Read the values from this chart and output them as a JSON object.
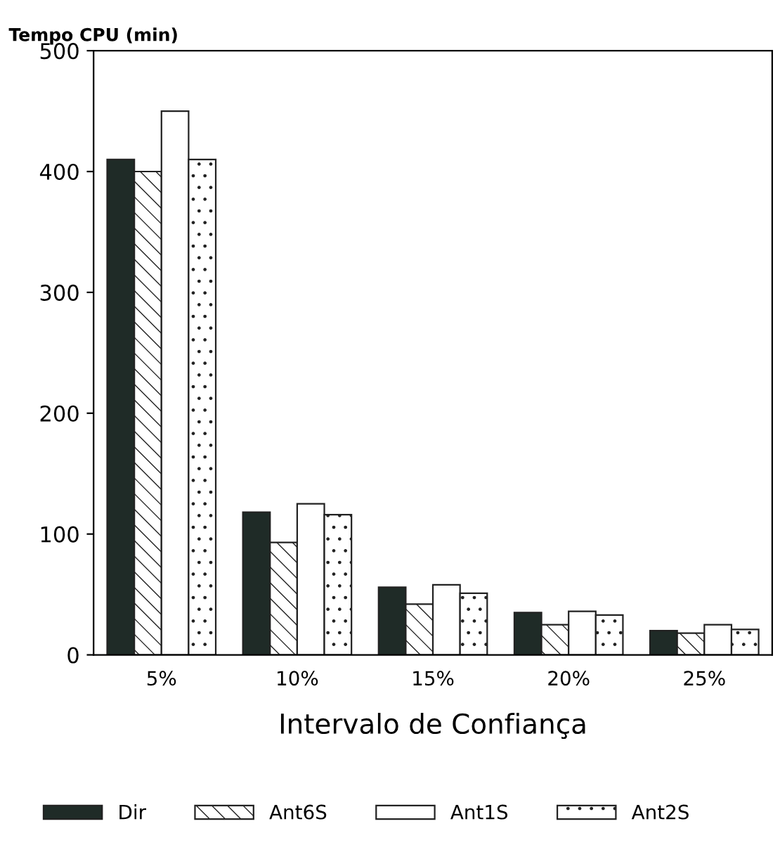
{
  "chart_data": {
    "type": "bar",
    "ylabel": "Tempo CPU (min)",
    "xlabel": "Intervalo de Confiança",
    "categories": [
      "5%",
      "10%",
      "15%",
      "20%",
      "25%"
    ],
    "series": [
      {
        "name": "Dir",
        "color": "#1f2b27",
        "values": [
          410,
          118,
          56,
          35,
          20
        ]
      },
      {
        "name": "Ant6S",
        "color": "#222222",
        "values": [
          400,
          93,
          42,
          25,
          18
        ]
      },
      {
        "name": "Ant1S",
        "color": "#ffffff",
        "values": [
          450,
          125,
          58,
          36,
          25
        ]
      },
      {
        "name": "Ant2S",
        "color": "#222222",
        "values": [
          410,
          116,
          51,
          33,
          21
        ]
      }
    ],
    "ylim": [
      0,
      500
    ],
    "yticks": [
      0,
      100,
      200,
      300,
      400,
      500
    ],
    "grid": false,
    "legend": "bottom"
  }
}
